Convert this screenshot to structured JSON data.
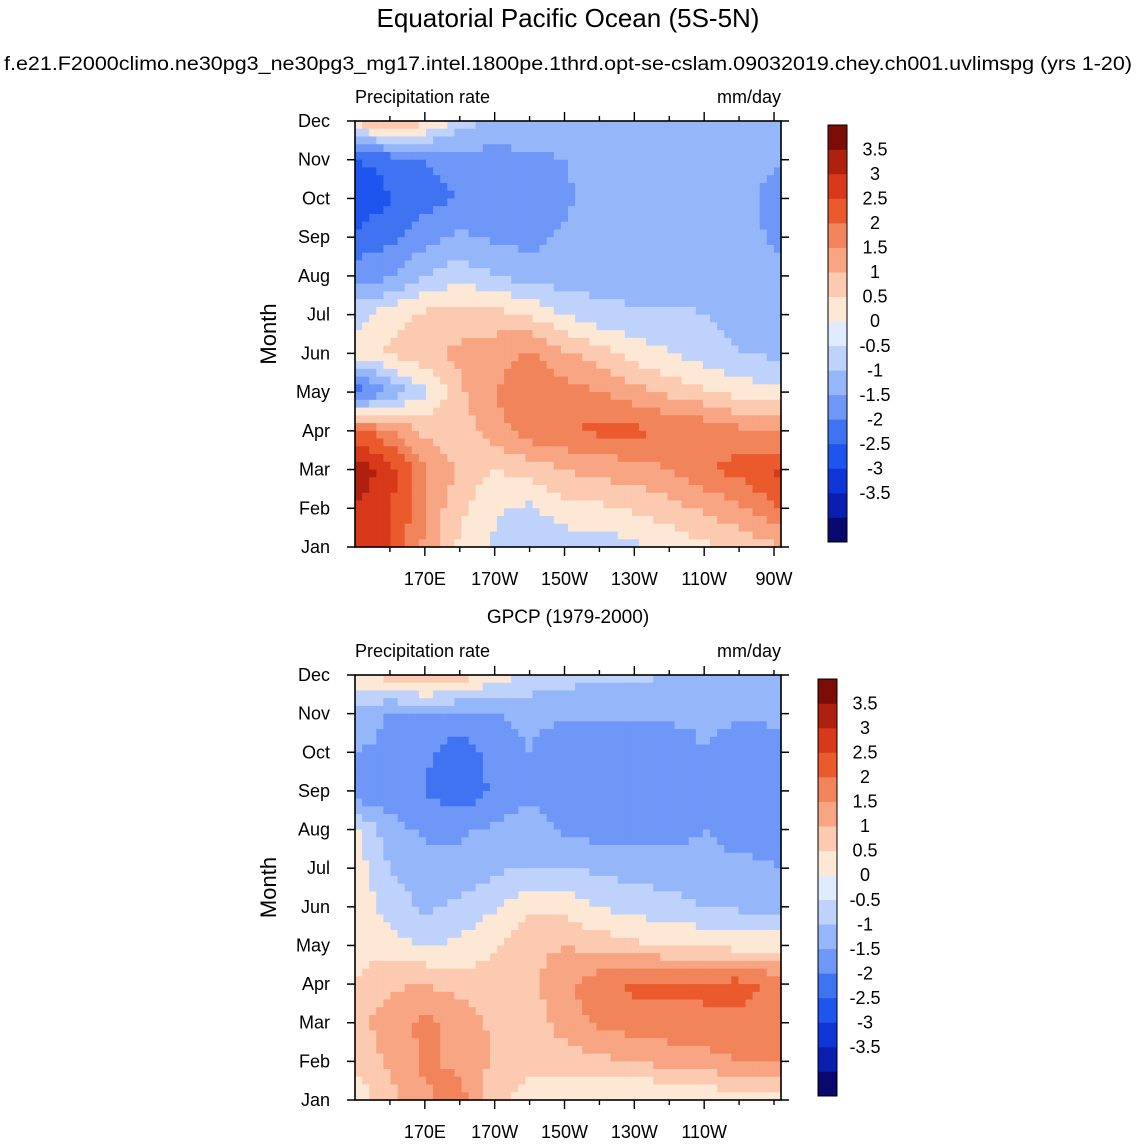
{
  "title": "Equatorial Pacific Ocean (5S-5N)",
  "case_name": "f.e21.F2000climo.ne30pg3_ne30pg3_mg17.intel.1800pe.1thrd.opt-se-cslam.09032019.chey.ch001.uvlimspg (yrs 1-20)",
  "colors": {
    "levels": [
      "#08086e",
      "#0a1fb0",
      "#0f35d6",
      "#1e55ee",
      "#3f73f2",
      "#6f97f8",
      "#96b6fa",
      "#bed2fb",
      "#e0ebfd",
      "#fde8d6",
      "#fbcab0",
      "#f7a582",
      "#f2845b",
      "#ea5a2c",
      "#d8391a",
      "#b0200e",
      "#7d0c06"
    ],
    "axis": "#000000"
  },
  "chart_data": [
    {
      "type": "heatmap",
      "name": "model",
      "subtitle": "",
      "left_label": "Precipitation rate",
      "right_label": "mm/day",
      "ylabel": "Month",
      "xlabel": "",
      "x_ticks": [
        "170E",
        "170W",
        "150W",
        "130W",
        "110W",
        "90W"
      ],
      "x_tick_values": [
        170,
        190,
        210,
        230,
        250,
        270
      ],
      "xlim": [
        150,
        272
      ],
      "y_ticks": [
        "Jan",
        "Feb",
        "Mar",
        "Apr",
        "May",
        "Jun",
        "Jul",
        "Aug",
        "Sep",
        "Oct",
        "Nov",
        "Dec"
      ],
      "colorbar_labels": [
        "3.5",
        "3",
        "2.5",
        "2",
        "1.5",
        "1",
        "0.5",
        "0",
        "-0.5",
        "-1",
        "-1.5",
        "-2",
        "-2.5",
        "-3",
        "-3.5"
      ],
      "z_units": "mm/day",
      "z_lon": [
        150,
        160,
        170,
        180,
        190,
        200,
        210,
        220,
        230,
        240,
        250,
        260,
        272
      ],
      "z": [
        [
          2.8,
          2.6,
          1.4,
          0.4,
          -0.1,
          -0.5,
          -0.3,
          -0.3,
          -0.1,
          0.1,
          0.4,
          0.6,
          1.0
        ],
        [
          3.0,
          2.6,
          1.5,
          0.6,
          0.1,
          -0.1,
          0.3,
          0.4,
          0.6,
          0.8,
          1.1,
          1.4,
          2.0
        ],
        [
          3.4,
          2.7,
          1.6,
          0.9,
          0.5,
          0.7,
          1.0,
          1.2,
          1.3,
          1.5,
          1.9,
          2.2,
          2.6
        ],
        [
          2.2,
          1.6,
          0.8,
          0.7,
          1.3,
          1.8,
          2.0,
          2.1,
          2.1,
          2.0,
          1.9,
          1.6,
          1.4
        ],
        [
          -2.0,
          -0.9,
          -0.1,
          0.9,
          1.5,
          1.8,
          1.7,
          1.5,
          1.2,
          0.9,
          0.6,
          0.3,
          0.1
        ],
        [
          0.2,
          0.6,
          0.9,
          1.1,
          1.3,
          1.6,
          1.1,
          0.7,
          0.3,
          0.0,
          -0.3,
          -0.5,
          -0.6
        ],
        [
          -0.2,
          0.3,
          0.6,
          0.8,
          0.7,
          0.4,
          0.0,
          -0.3,
          -0.4,
          -0.4,
          -0.5,
          -0.6,
          -0.7
        ],
        [
          -1.3,
          -1.1,
          -0.5,
          -0.2,
          -0.5,
          -0.7,
          -0.8,
          -0.8,
          -0.8,
          -0.8,
          -0.8,
          -0.8,
          -0.9
        ],
        [
          -1.8,
          -1.6,
          -1.2,
          -0.9,
          -1.1,
          -1.2,
          -0.9,
          -0.8,
          -0.8,
          -0.8,
          -0.8,
          -0.8,
          -1.1
        ],
        [
          -2.6,
          -2.0,
          -1.7,
          -1.5,
          -1.4,
          -1.3,
          -1.1,
          -0.8,
          -0.8,
          -0.8,
          -0.8,
          -0.8,
          -1.3
        ],
        [
          -2.0,
          -1.8,
          -1.5,
          -1.3,
          -1.2,
          -1.1,
          -1.0,
          -0.8,
          -0.8,
          -0.8,
          -0.8,
          -0.8,
          -0.9
        ],
        [
          0.7,
          1.0,
          0.7,
          -0.2,
          -0.6,
          -0.7,
          -0.7,
          -0.7,
          -0.7,
          -0.7,
          -0.7,
          -0.7,
          -0.7
        ]
      ]
    },
    {
      "type": "heatmap",
      "name": "obs",
      "subtitle": "GPCP (1979-2000)",
      "left_label": "Precipitation rate",
      "right_label": "mm/day",
      "ylabel": "Month",
      "xlabel": "",
      "x_ticks": [
        "170E",
        "170W",
        "150W",
        "130W",
        "110W"
      ],
      "x_tick_values": [
        170,
        190,
        210,
        230,
        250
      ],
      "xlim": [
        150,
        272
      ],
      "y_ticks": [
        "Jan",
        "Feb",
        "Mar",
        "Apr",
        "May",
        "Jun",
        "Jul",
        "Aug",
        "Sep",
        "Oct",
        "Nov",
        "Dec"
      ],
      "colorbar_labels": [
        "3.5",
        "3",
        "2.5",
        "2",
        "1.5",
        "1",
        "0.5",
        "0",
        "-0.5",
        "-1",
        "-1.5",
        "-2",
        "-2.5",
        "-3",
        "-3.5"
      ],
      "z_units": "mm/day",
      "z_lon": [
        150,
        160,
        170,
        180,
        190,
        200,
        210,
        220,
        230,
        240,
        250,
        260,
        272
      ],
      "z": [
        [
          0.2,
          0.8,
          1.4,
          1.7,
          0.6,
          0.3,
          0.2,
          0.0,
          -0.1,
          -0.1,
          0.1,
          0.2,
          0.2
        ],
        [
          0.6,
          1.1,
          1.6,
          1.4,
          0.9,
          0.6,
          0.7,
          0.9,
          1.0,
          1.2,
          1.3,
          1.5,
          1.5
        ],
        [
          0.8,
          1.3,
          1.6,
          1.3,
          0.9,
          0.6,
          1.3,
          1.6,
          1.8,
          1.8,
          1.9,
          1.9,
          1.6
        ],
        [
          0.5,
          0.9,
          1.0,
          0.8,
          0.6,
          0.9,
          1.4,
          1.8,
          2.1,
          2.1,
          2.1,
          2.2,
          1.9
        ],
        [
          0.4,
          0.2,
          0.0,
          0.1,
          0.5,
          0.8,
          1.0,
          0.8,
          0.6,
          0.5,
          0.4,
          0.3,
          0.3
        ],
        [
          0.3,
          -0.2,
          -0.6,
          -0.4,
          -0.1,
          0.4,
          0.3,
          0.0,
          -0.2,
          -0.3,
          -0.5,
          -0.6,
          -0.6
        ],
        [
          0.3,
          -0.5,
          -0.8,
          -0.8,
          -0.6,
          -0.5,
          -0.5,
          -0.6,
          -0.7,
          -0.8,
          -0.8,
          -0.9,
          -1.0
        ],
        [
          0.1,
          -0.8,
          -1.1,
          -1.1,
          -0.9,
          -0.8,
          -1.1,
          -1.2,
          -1.3,
          -1.2,
          -1.0,
          -1.2,
          -1.1
        ],
        [
          -1.4,
          -1.3,
          -1.5,
          -1.9,
          -1.4,
          -1.1,
          -1.1,
          -1.3,
          -1.3,
          -1.3,
          -1.0,
          -1.2,
          -1.2
        ],
        [
          -1.0,
          -1.1,
          -1.4,
          -1.8,
          -1.3,
          -1.0,
          -1.3,
          -1.4,
          -1.4,
          -1.3,
          -1.0,
          -1.3,
          -1.2
        ],
        [
          -0.6,
          -1.1,
          -1.1,
          -1.1,
          -1.0,
          -0.9,
          -0.9,
          -0.9,
          -0.9,
          -0.9,
          -0.9,
          -0.9,
          -0.9
        ],
        [
          0.3,
          0.8,
          1.2,
          0.8,
          0.3,
          -0.1,
          -0.3,
          -0.4,
          -0.4,
          -0.5,
          -0.5,
          -0.5,
          -0.5
        ]
      ]
    }
  ]
}
